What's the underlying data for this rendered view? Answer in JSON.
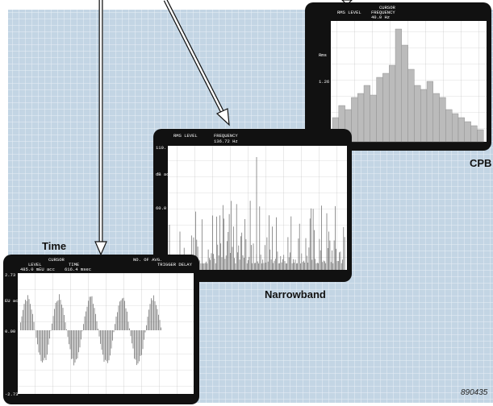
{
  "labels": {
    "time": "Time",
    "narrowband": "Narrowband",
    "cpb": "CPB",
    "figure_id": "890435"
  },
  "screens": {
    "time": {
      "header": [
        "CURSOR",
        "LEVEL",
        "TIME",
        "NO. OF AVG.",
        "TRIGGER DELAY"
      ],
      "readout": [
        "485.0 mEU acc",
        "616.4 msec"
      ],
      "axis": [
        "2.73",
        "EU acc",
        "0.00",
        "-2.73"
      ]
    },
    "narrowband": {
      "header": [
        "RMS LEVEL",
        "FREQUENCY"
      ],
      "readout": [
        "136.72 Hz"
      ],
      "axis": [
        "110.",
        "dB acc",
        "60.0"
      ]
    },
    "cpb": {
      "header": [
        "CURSOR",
        "RMS LEVEL",
        "FREQUENCY"
      ],
      "readout": [
        "40.0 Hz"
      ],
      "axis": [
        "Rms",
        "1.26"
      ]
    }
  }
}
